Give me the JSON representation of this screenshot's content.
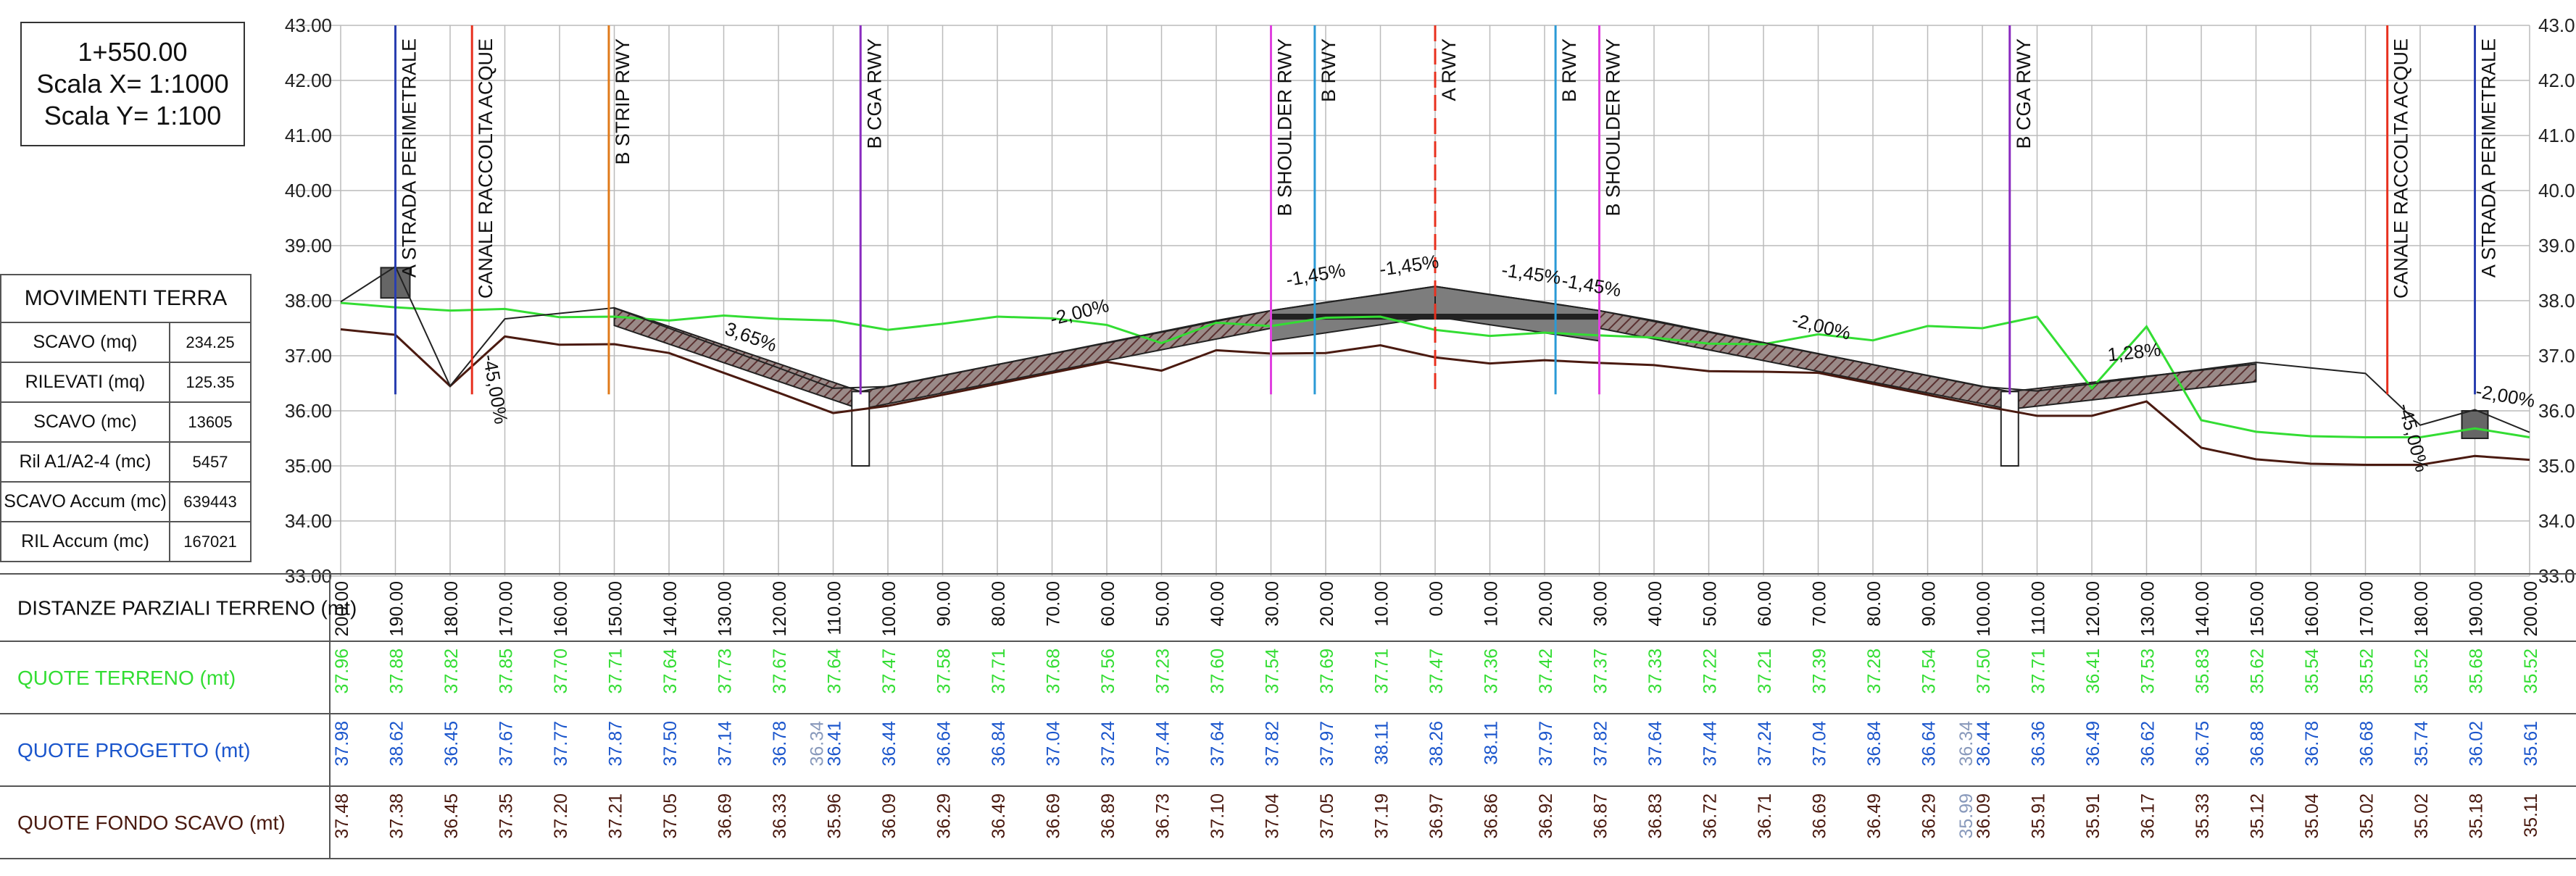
{
  "header": {
    "station": "1+550.00",
    "scale_x": "Scala X= 1:1000",
    "scale_y": "Scala Y= 1:100"
  },
  "earthworks": {
    "title": "MOVIMENTI TERRA",
    "rows": [
      {
        "label": "SCAVO (mq)",
        "value": "234.25"
      },
      {
        "label": "RILEVATI (mq)",
        "value": "125.35"
      },
      {
        "label": "SCAVO (mc)",
        "value": "13605"
      },
      {
        "label": "Ril A1/A2-4 (mc)",
        "value": "5457"
      },
      {
        "label": "SCAVO Accum (mc)",
        "value": "639443"
      },
      {
        "label": "RIL Accum (mc)",
        "value": "167021"
      }
    ]
  },
  "colors": {
    "terrain": "#33dd33",
    "excavation": "#4a1a10",
    "design": "#1a55cc",
    "grid": "#bbbbbb",
    "orange": "#e07a1a",
    "red": "#e8301e",
    "purple": "#8a2bc0",
    "magenta": "#e040e0",
    "cyan": "#2a9ad6",
    "blue": "#2a3fb0"
  },
  "elevation_axis": {
    "labels": [
      "43.00",
      "42.00",
      "41.00",
      "40.00",
      "39.00",
      "38.00",
      "37.00",
      "36.00",
      "35.00",
      "34.00",
      "33.00"
    ],
    "right_labels": [
      "43.0",
      "42.0",
      "41.0",
      "40.0",
      "39.0",
      "38.0",
      "37.0",
      "36.0",
      "35.0",
      "34.0",
      "33.0"
    ]
  },
  "features": [
    {
      "label": "A STRADA PERIMETRALE",
      "color": "blue",
      "dashed": false
    },
    {
      "label": "CANALE RACCOLTA ACQUE",
      "color": "red",
      "dashed": false
    },
    {
      "label": "B STRIP RWY",
      "color": "orange",
      "dashed": false
    },
    {
      "label": "B CGA RWY",
      "color": "purple",
      "dashed": false
    },
    {
      "label": "B SHOULDER RWY",
      "color": "magenta",
      "dashed": false
    },
    {
      "label": "B RWY",
      "color": "cyan",
      "dashed": false
    },
    {
      "label": "A RWY",
      "color": "red",
      "dashed": true
    },
    {
      "label": "B RWY",
      "color": "cyan",
      "dashed": false
    },
    {
      "label": "B SHOULDER RWY",
      "color": "magenta",
      "dashed": false
    },
    {
      "label": "B CGA RWY",
      "color": "purple",
      "dashed": false
    },
    {
      "label": "CANALE RACCOLTA ACQUE",
      "color": "red",
      "dashed": false
    },
    {
      "label": "A STRADA PERIMETRALE",
      "color": "blue",
      "dashed": false
    }
  ],
  "slopes": [
    "-45,00%",
    "3,65%",
    "-2,00%",
    "-1,45%",
    "-1,45%",
    "-1,45%",
    "-1,45%",
    "-2,00%",
    "1,28%",
    "-45,00%",
    "-2,00%"
  ],
  "rows": {
    "distances_label": "DISTANZE PARZIALI TERRENO (mt)",
    "terrain_label": "QUOTE TERRENO (mt)",
    "design_label": "QUOTE PROGETTO (mt)",
    "excavation_label": "QUOTE FONDO SCAVO (mt)"
  },
  "distances": [
    "200.00",
    "190.00",
    "180.00",
    "170.00",
    "160.00",
    "150.00",
    "140.00",
    "130.00",
    "120.00",
    "110.00",
    "100.00",
    "90.00",
    "80.00",
    "70.00",
    "60.00",
    "50.00",
    "40.00",
    "30.00",
    "20.00",
    "10.00",
    "0.00",
    "10.00",
    "20.00",
    "30.00",
    "40.00",
    "50.00",
    "60.00",
    "70.00",
    "80.00",
    "90.00",
    "100.00",
    "110.00",
    "120.00",
    "130.00",
    "140.00",
    "150.00",
    "160.00",
    "170.00",
    "180.00",
    "190.00",
    "200.00"
  ],
  "terrain_values": [
    "37.96",
    "37.88",
    "37.82",
    "37.85",
    "37.70",
    "37.71",
    "37.64",
    "37.73",
    "37.67",
    "37.64",
    "37.47",
    "37.58",
    "37.71",
    "37.68",
    "37.56",
    "37.23",
    "37.60",
    "37.54",
    "37.69",
    "37.71",
    "37.47",
    "37.36",
    "37.42",
    "37.37",
    "37.33",
    "37.22",
    "37.21",
    "37.39",
    "37.28",
    "37.54",
    "37.50",
    "37.71",
    "36.41",
    "37.53",
    "35.83",
    "35.62",
    "35.54",
    "35.52",
    "35.52",
    "35.68",
    "35.52"
  ],
  "design_values": [
    "37.98",
    "38.62",
    "36.45",
    "37.67",
    "37.77",
    "37.87",
    "37.50",
    "37.14",
    "36.78",
    "36.41",
    "36.44",
    "36.64",
    "36.84",
    "37.04",
    "37.24",
    "37.44",
    "37.64",
    "37.82",
    "37.97",
    "38.11",
    "38.26",
    "38.11",
    "37.97",
    "37.82",
    "37.64",
    "37.44",
    "37.24",
    "37.04",
    "36.84",
    "36.64",
    "36.44",
    "36.36",
    "36.49",
    "36.62",
    "36.75",
    "36.88",
    "36.78",
    "36.68",
    "35.74",
    "36.02",
    "35.61"
  ],
  "design_extra": {
    "index": 9,
    "value": "36.34",
    "index2": 30,
    "value2": "36.34"
  },
  "excavation_values": [
    "37.48",
    "37.38",
    "36.45",
    "37.35",
    "37.20",
    "37.21",
    "37.05",
    "36.69",
    "36.33",
    "35.96",
    "36.09",
    "36.29",
    "36.49",
    "36.69",
    "36.89",
    "36.73",
    "37.10",
    "37.04",
    "37.05",
    "37.19",
    "36.97",
    "36.86",
    "36.92",
    "36.87",
    "36.83",
    "36.72",
    "36.71",
    "36.69",
    "36.49",
    "36.29",
    "36.09",
    "35.91",
    "35.91",
    "36.17",
    "35.33",
    "35.12",
    "35.04",
    "35.02",
    "35.02",
    "35.18",
    "35.11"
  ],
  "excavation_extra": {
    "index": 30,
    "value": "35.99"
  }
}
